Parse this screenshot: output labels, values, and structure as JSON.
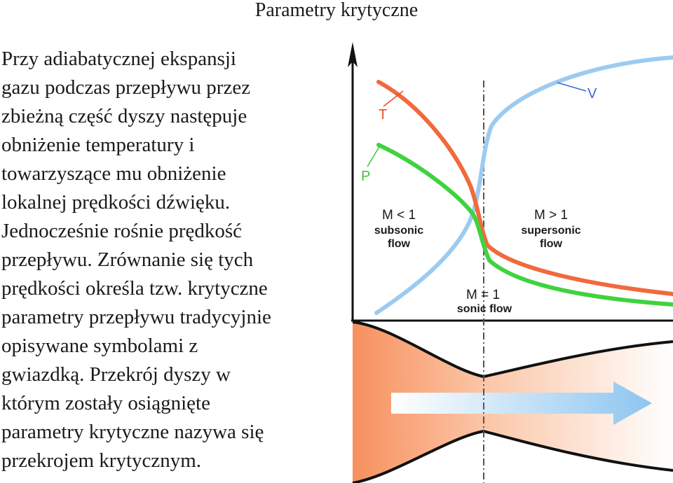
{
  "title": "Parametry krytyczne",
  "paragraph_lines": [
    "Przy adiabatycznej ekspansji",
    "gazu podczas przepływu przez",
    "zbieżną część dyszy następuje",
    "obniżenie temperatury i",
    "towarzyszące mu obniżenie",
    "lokalnej prędkości dźwięku.",
    "Jednocześnie rośnie prędkość",
    "przepływu. Zrównanie się tych",
    "prędkości określa tzw. krytyczne",
    "parametry przepływu tradycyjnie",
    "opisywane symbolami z",
    "gwiazdką. Przekrój dyszy w",
    "którym zostały osiągnięte",
    "parametry krytyczne nazywa się",
    "przekrojem krytycznym."
  ],
  "diagram": {
    "curve_labels": {
      "temperature": "T",
      "pressure": "P",
      "velocity": "V"
    },
    "regions": {
      "subsonic": {
        "mach": "M < 1",
        "line1": "subsonic",
        "line2": "flow"
      },
      "supersonic": {
        "mach": "M > 1",
        "line1": "supersonic",
        "line2": "flow"
      },
      "sonic": {
        "mach": "M = 1",
        "line1": "sonic flow"
      }
    },
    "colors": {
      "temperature": "#f06a3c",
      "pressure": "#3fd33f",
      "velocity": "#9dcbf0",
      "label_red": "#e85020",
      "label_green": "#3ac43a",
      "label_blue": "#3a66d6",
      "nozzle_wall": "#111111",
      "nozzle_fill_start": "#f7905f",
      "nozzle_fill_end": "#ffffff",
      "flow_arrow": "#8ec5f0"
    }
  }
}
